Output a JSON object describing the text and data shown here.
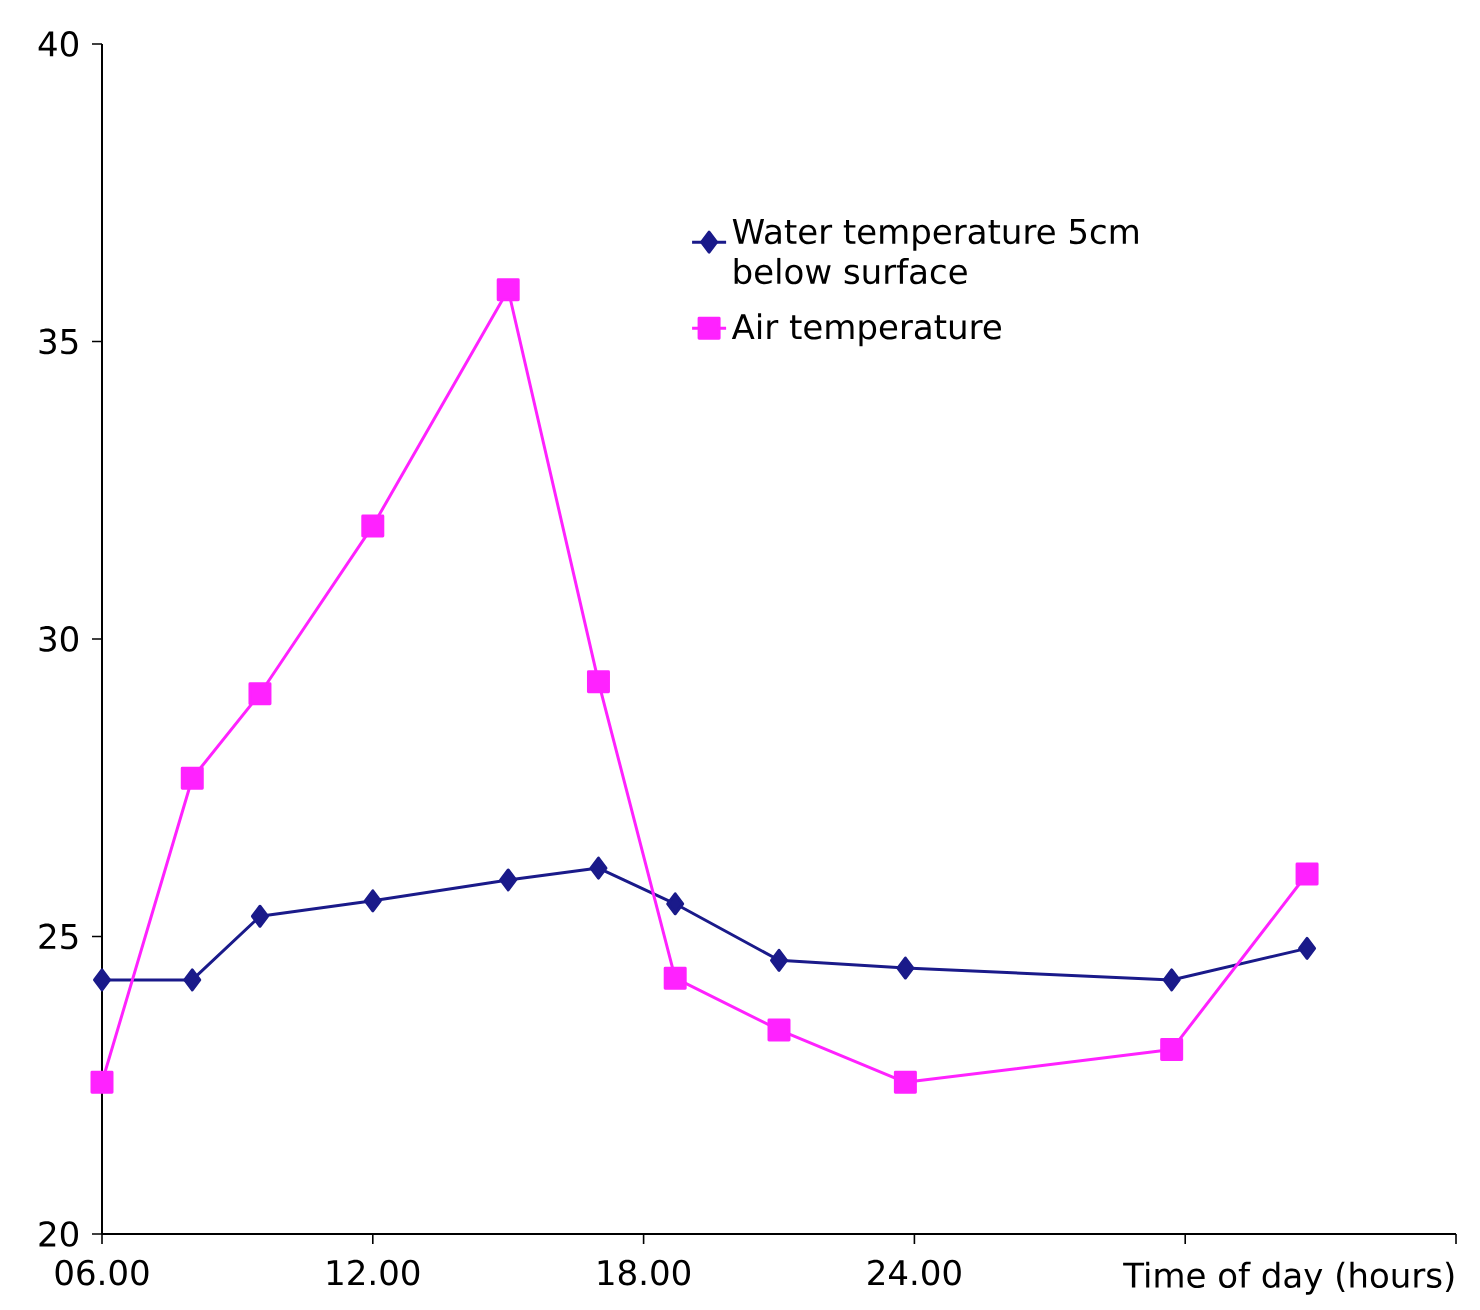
{
  "chart_data": {
    "type": "line",
    "xlabel": "Time of day (hours)",
    "xlim": [
      6,
      36
    ],
    "xticks": [
      {
        "value": 6,
        "label": "06.00"
      },
      {
        "value": 12,
        "label": "12.00"
      },
      {
        "value": 18,
        "label": "18.00"
      },
      {
        "value": 24,
        "label": "24.00"
      },
      {
        "value": 30,
        "label": null
      },
      {
        "value": 36,
        "label": null
      }
    ],
    "ylim": [
      20,
      40
    ],
    "yticks": [
      20,
      25,
      30,
      35,
      40
    ],
    "grid": false,
    "legend": "top right",
    "line_style": "solid",
    "series": [
      {
        "name": "Water temperature 5cm below surface",
        "color": "#1a1a8a",
        "marker": "diamond",
        "x": [
          6,
          8,
          9.5,
          12,
          15,
          17,
          18.7,
          21,
          23.8,
          29.7,
          32.7
        ],
        "values": [
          24.27,
          24.27,
          25.34,
          25.6,
          25.95,
          26.15,
          25.55,
          24.6,
          24.47,
          24.27,
          24.8
        ]
      },
      {
        "name": "Air temperature",
        "color": "#ff22ff",
        "marker": "square",
        "x": [
          6,
          8,
          9.5,
          12,
          15,
          17,
          18.7,
          21,
          23.8,
          29.7,
          32.7
        ],
        "values": [
          22.55,
          27.66,
          29.08,
          31.9,
          35.87,
          29.28,
          24.3,
          23.43,
          22.55,
          23.1,
          26.05
        ]
      }
    ]
  }
}
